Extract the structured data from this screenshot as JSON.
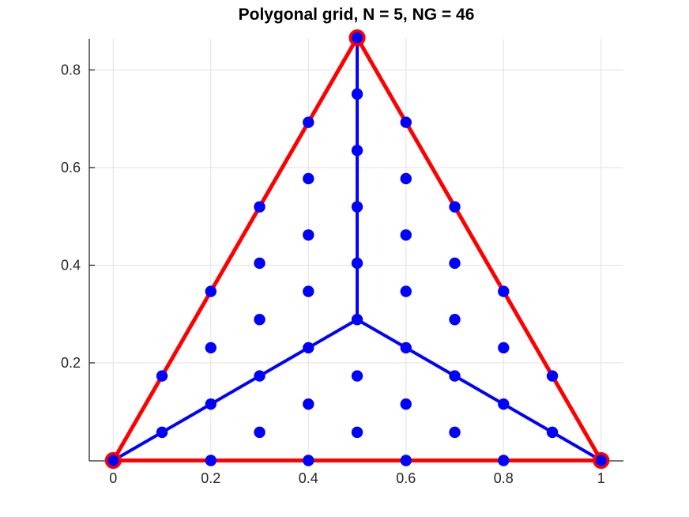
{
  "chart_data": {
    "type": "scatter",
    "title": "Polygonal grid, N = 5, NG = 46",
    "N": 5,
    "NG": 46,
    "xlim": [
      -0.05,
      1.045
    ],
    "ylim": [
      0,
      0.864
    ],
    "grid": "on",
    "legend": "none",
    "xlabel": "",
    "ylabel": "",
    "x_ticks": [
      0,
      0.2,
      0.4,
      0.6,
      0.8,
      1
    ],
    "x_tick_labels": [
      "0",
      "0.2",
      "0.4",
      "0.6",
      "0.8",
      "1"
    ],
    "y_ticks": [
      0.2,
      0.4,
      0.6,
      0.8
    ],
    "y_tick_labels": [
      "0.2",
      "0.4",
      "0.6",
      "0.8"
    ],
    "colors": {
      "polygon_edge": "#FF0000",
      "interior_edge": "#0000FF",
      "grid_point": "#0000FF",
      "vertex_ring": "#FF0000",
      "gridline": "#E2E2E2",
      "axis": "#262626",
      "tick_label": "#262626",
      "title": "#000000",
      "background": "#FFFFFF"
    },
    "polygon_vertices": [
      [
        0,
        0
      ],
      [
        1,
        0
      ],
      [
        0.5,
        0.866
      ]
    ],
    "centroid": [
      0.5,
      0.2887
    ],
    "interior_edges": [
      [
        [
          0.5,
          0.2887
        ],
        [
          0,
          0
        ]
      ],
      [
        [
          0.5,
          0.2887
        ],
        [
          1,
          0
        ]
      ],
      [
        [
          0.5,
          0.2887
        ],
        [
          0.5,
          0.866
        ]
      ]
    ],
    "grid_points": [
      [
        0.0,
        0.0
      ],
      [
        0.2,
        0.0
      ],
      [
        0.4,
        0.0
      ],
      [
        0.6,
        0.0
      ],
      [
        0.8,
        0.0
      ],
      [
        1.0,
        0.0
      ],
      [
        0.1,
        0.0577
      ],
      [
        0.3,
        0.0577
      ],
      [
        0.5,
        0.0577
      ],
      [
        0.7,
        0.0577
      ],
      [
        0.9,
        0.0577
      ],
      [
        0.2,
        0.1155
      ],
      [
        0.4,
        0.1155
      ],
      [
        0.6,
        0.1155
      ],
      [
        0.8,
        0.1155
      ],
      [
        0.1,
        0.1732
      ],
      [
        0.3,
        0.1732
      ],
      [
        0.5,
        0.1732
      ],
      [
        0.7,
        0.1732
      ],
      [
        0.9,
        0.1732
      ],
      [
        0.2,
        0.2309
      ],
      [
        0.4,
        0.2309
      ],
      [
        0.6,
        0.2309
      ],
      [
        0.8,
        0.2309
      ],
      [
        0.3,
        0.2887
      ],
      [
        0.5,
        0.2887
      ],
      [
        0.7,
        0.2887
      ],
      [
        0.2,
        0.3464
      ],
      [
        0.4,
        0.3464
      ],
      [
        0.6,
        0.3464
      ],
      [
        0.8,
        0.3464
      ],
      [
        0.3,
        0.4041
      ],
      [
        0.5,
        0.4041
      ],
      [
        0.7,
        0.4041
      ],
      [
        0.4,
        0.4619
      ],
      [
        0.6,
        0.4619
      ],
      [
        0.3,
        0.5196
      ],
      [
        0.5,
        0.5196
      ],
      [
        0.7,
        0.5196
      ],
      [
        0.4,
        0.5774
      ],
      [
        0.6,
        0.5774
      ],
      [
        0.5,
        0.6351
      ],
      [
        0.4,
        0.6928
      ],
      [
        0.6,
        0.6928
      ],
      [
        0.5,
        0.7506
      ],
      [
        0.5,
        0.866
      ]
    ]
  }
}
